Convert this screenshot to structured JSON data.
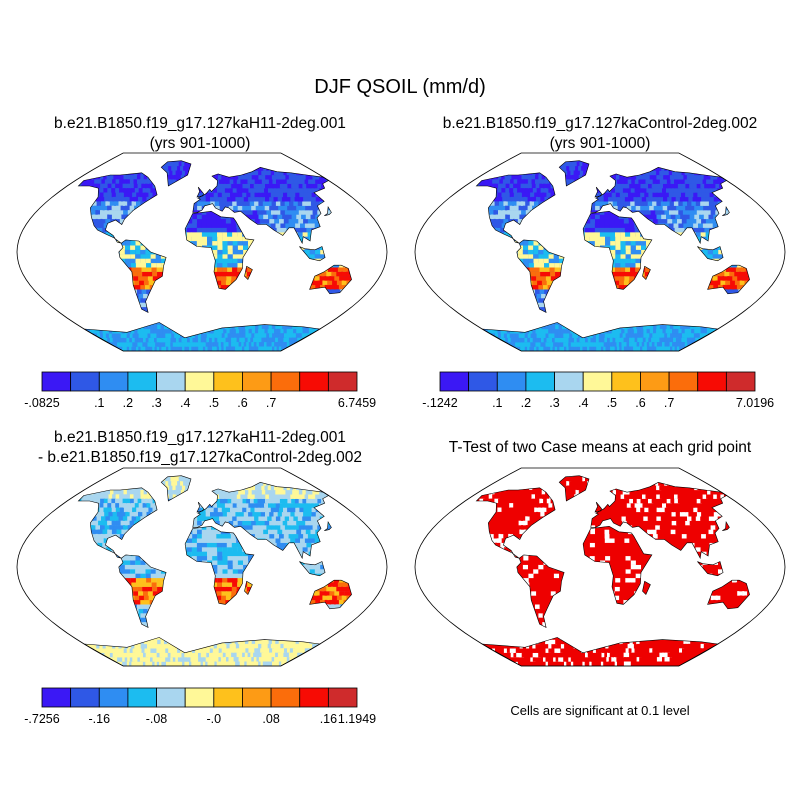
{
  "title": "DJF QSOIL (mm/d)",
  "colors": {
    "coast": "#000000",
    "globe_outline": "#000000",
    "significant": "#ee0000"
  },
  "panels": [
    {
      "id": "case1",
      "title_lines": [
        "b.e21.B1850.f19_g17.127kaH11-2deg.001",
        "(yrs 901-1000)"
      ],
      "field": "absolute"
    },
    {
      "id": "case2",
      "title_lines": [
        "b.e21.B1850.f19_g17.127kaControl-2deg.002",
        "(yrs 901-1000)"
      ],
      "field": "absolute"
    },
    {
      "id": "difference",
      "title_lines": [
        "b.e21.B1850.f19_g17.127kaH11-2deg.001",
        "- b.e21.B1850.f19_g17.127kaControl-2deg.002"
      ],
      "field": "difference"
    },
    {
      "id": "ttest",
      "title_lines": [
        "T-Test of two Case means at each grid point"
      ],
      "field": "significance"
    }
  ],
  "colorbars": [
    {
      "id": "cb1",
      "colors": [
        "#3b18f5",
        "#2f58e6",
        "#2f8df2",
        "#1cbcf0",
        "#a9d6ef",
        "#fff898",
        "#fec11c",
        "#fd9b15",
        "#fb6d0b",
        "#f70b04",
        "#cf2b2c"
      ],
      "labels": [
        "-.0825",
        ".1",
        ".2",
        ".3",
        ".4",
        ".5",
        ".6",
        ".7",
        "6.7459"
      ],
      "label_slots": [
        0,
        2,
        3,
        4,
        5,
        6,
        7,
        8,
        11
      ]
    },
    {
      "id": "cb2",
      "colors": [
        "#3b18f5",
        "#2f58e6",
        "#2f8df2",
        "#1cbcf0",
        "#a9d6ef",
        "#fff898",
        "#fec11c",
        "#fd9b15",
        "#fb6d0b",
        "#f70b04",
        "#cf2b2c"
      ],
      "labels": [
        "-.1242",
        ".1",
        ".2",
        ".3",
        ".4",
        ".5",
        ".6",
        ".7",
        "7.0196"
      ],
      "label_slots": [
        0,
        2,
        3,
        4,
        5,
        6,
        7,
        8,
        11
      ]
    },
    {
      "id": "cb3",
      "colors": [
        "#3b18f5",
        "#2f58e6",
        "#2f8df2",
        "#1cbcf0",
        "#a9d6ef",
        "#fff898",
        "#fec11c",
        "#fd9b15",
        "#fb6d0b",
        "#f70b04",
        "#cf2b2c"
      ],
      "labels": [
        "-.7256",
        "-.16",
        "-.08",
        "-.0",
        ".08",
        ".16",
        "1.1949"
      ],
      "label_slots": [
        0,
        2,
        4,
        6,
        8,
        10,
        11
      ]
    }
  ],
  "significance_note": "Cells are significant at 0.1 level",
  "map_data": {
    "projection": "robinson",
    "ocean_color": "#ffffff",
    "land_color_abs": "#2f58e6",
    "land_color_diff": "#a9d6ef",
    "land_color_sig": "#ee0000",
    "land_mask": [
      [
        -168,
        65,
        -140,
        70,
        -125,
        70,
        -95,
        72,
        -80,
        68,
        -63,
        60,
        -55,
        52,
        -66,
        45,
        -75,
        38,
        -81,
        30,
        -82,
        25,
        -90,
        29,
        -97,
        26,
        -97,
        20,
        -88,
        15,
        -83,
        9,
        -79,
        8,
        -87,
        13,
        -95,
        16,
        -105,
        20,
        -110,
        24,
        -117,
        32,
        -124,
        40,
        -125,
        50,
        -135,
        58,
        -150,
        60,
        -165,
        60
      ],
      [
        -45,
        60,
        -22,
        70,
        -20,
        80,
        -40,
        83,
        -65,
        82,
        -70,
        77,
        -55,
        72
      ],
      [
        -79,
        8,
        -75,
        11,
        -62,
        10,
        -50,
        0,
        -35,
        -5,
        -38,
        -13,
        -40,
        -22,
        -48,
        -26,
        -58,
        -38,
        -65,
        -45,
        -68,
        -55,
        -74,
        -52,
        -72,
        -30,
        -70,
        -18,
        -80,
        -5,
        -81,
        0,
        -77,
        4
      ],
      [
        -10,
        36,
        -9,
        44,
        -2,
        48,
        -5,
        49,
        5,
        53,
        10,
        57,
        12,
        55,
        20,
        60,
        22,
        65,
        15,
        69,
        25,
        71,
        40,
        68,
        60,
        70,
        80,
        73,
        100,
        77,
        120,
        73,
        140,
        72,
        160,
        70,
        180,
        68,
        180,
        65,
        165,
        62,
        160,
        58,
        140,
        54,
        142,
        46,
        130,
        42,
        128,
        35,
        121,
        31,
        120,
        23,
        110,
        20,
        106,
        10,
        100,
        14,
        98,
        8,
        93,
        22,
        88,
        22,
        80,
        15,
        72,
        20,
        66,
        25,
        57,
        25,
        50,
        30,
        42,
        37,
        35,
        36,
        30,
        40,
        26,
        41,
        22,
        37,
        15,
        40,
        12,
        44,
        8,
        43,
        3,
        42,
        0,
        38,
        -5,
        36
      ],
      [
        -17,
        21,
        -10,
        35,
        10,
        37,
        20,
        32,
        33,
        31,
        35,
        28,
        43,
        12,
        51,
        11,
        40,
        -5,
        40,
        -15,
        35,
        -25,
        25,
        -34,
        18,
        -33,
        12,
        -18,
        13,
        -8,
        9,
        4,
        -5,
        5,
        -15,
        11
      ],
      [
        114,
        -22,
        122,
        -18,
        130,
        -12,
        137,
        -12,
        145,
        -15,
        153,
        -25,
        150,
        -37,
        140,
        -38,
        130,
        -32,
        115,
        -34
      ],
      [
        -180,
        -70,
        -120,
        -73,
        -60,
        -64,
        -30,
        -78,
        30,
        -69,
        90,
        -66,
        150,
        -68,
        180,
        -70,
        180,
        -90,
        -180,
        -90
      ],
      [
        95,
        5,
        105,
        -6,
        115,
        -8,
        120,
        -5,
        117,
        5,
        110,
        2,
        100,
        3
      ],
      [
        130,
        33,
        135,
        35,
        141,
        41,
        140,
        36,
        136,
        34
      ],
      [
        -6,
        50,
        -3,
        55,
        -5,
        59,
        2,
        53,
        1,
        51
      ],
      [
        44,
        -13,
        50,
        -16,
        47,
        -25,
        43,
        -22
      ]
    ]
  }
}
